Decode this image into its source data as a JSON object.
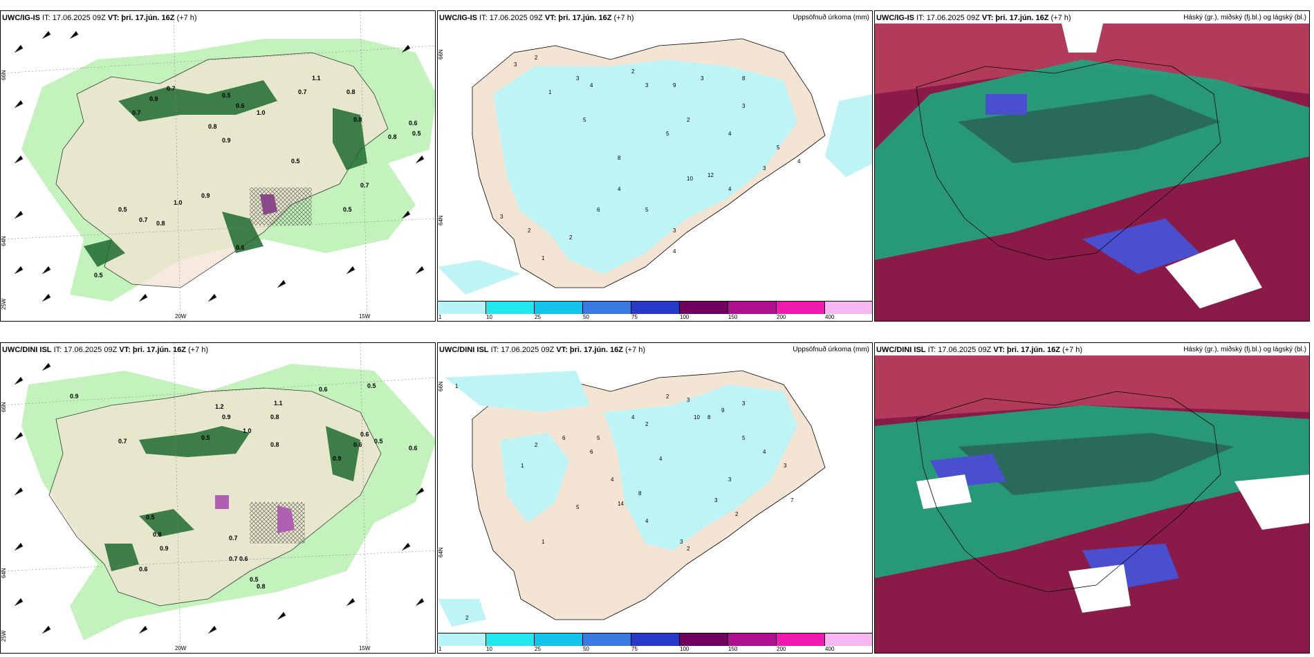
{
  "panels": [
    {
      "model": "UWC/IG-IS",
      "it": "IT: 17.06.2025 09Z",
      "vt_label": "VT:",
      "vt": "þri. 17.jún. 16Z",
      "lead": "(+7 h)",
      "right": ""
    },
    {
      "model": "UWC/IG-IS",
      "it": "IT: 17.06.2025 09Z",
      "vt_label": "VT:",
      "vt": "þri. 17.jún. 16Z",
      "lead": "(+7 h)",
      "right": "Uppsöfnuð úrkoma (mm)"
    },
    {
      "model": "UWC/IG-IS",
      "it": "IT: 17.06.2025 09Z",
      "vt_label": "VT:",
      "vt": "þri. 17.jún. 16Z",
      "lead": "(+7 h)",
      "right": "Háský (gr.), miðský (fj.bl.) og lágský (bl.)"
    },
    {
      "model": "UWC/DINI ISL",
      "it": "IT: 17.06.2025 09Z",
      "vt_label": "VT:",
      "vt": "þri. 17.jún. 16Z",
      "lead": "(+7 h)",
      "right": ""
    },
    {
      "model": "UWC/DINI ISL",
      "it": "IT: 17.06.2025 09Z",
      "vt_label": "VT:",
      "vt": "þri. 17.jún. 16Z",
      "lead": "(+7 h)",
      "right": "Uppsöfnuð úrkoma (mm)"
    },
    {
      "model": "UWC/DINI ISL",
      "it": "IT: 17.06.2025 09Z",
      "vt_label": "VT:",
      "vt": "þri. 17.jún. 16Z",
      "lead": "(+7 h)",
      "right": "Háský (gr.), miðský (fj.bl.) og lágský (bl.)"
    }
  ],
  "axis": {
    "lat66": "66N",
    "lat64": "64N",
    "lon25": "25W",
    "lon20": "20W",
    "lon15": "15W"
  },
  "legend": {
    "labels": [
      "1",
      "10",
      "25",
      "50",
      "75",
      "100",
      "150",
      "200",
      "400"
    ],
    "colors": [
      "#b8f4f6",
      "#22e8ee",
      "#12c4ea",
      "#3a7ae0",
      "#2838c8",
      "#700060",
      "#b01090",
      "#f01ab0",
      "#f7b7f0"
    ]
  },
  "colors": {
    "land": "#f4e4d4",
    "precip_light": "#b9f0b0",
    "precip_dark": "#1f6a2f",
    "cyan": "#bff4f7",
    "cloud_high": "#1ca77c",
    "cloud_mid": "#8a1a48",
    "cloud_low": "#4a4fd0"
  },
  "precip_top": [
    "0.7",
    "0.9",
    "0.7",
    "0.5",
    "0.6",
    "0.8",
    "1.0",
    "0.9",
    "0.8",
    "1.1",
    "0.8",
    "0.7",
    "0.5",
    "0.6",
    "0.5",
    "0.8",
    "0.7",
    "0.5",
    "0.9",
    "1.0",
    "0.7",
    "0.5",
    "0.8",
    "0.6",
    "0.5"
  ],
  "precip_bottom": [
    "0.9",
    "0.6",
    "0.5",
    "1.2",
    "0.9",
    "0.8",
    "1.1",
    "0.6",
    "0.5",
    "0.7",
    "0.6",
    "0.9",
    "0.5",
    "0.8",
    "0.6",
    "1.0",
    "0.7",
    "0.8",
    "0.5",
    "0.7",
    "0.6",
    "0.9",
    "0.5",
    "0.8",
    "0.6"
  ],
  "acc_top": [
    "3",
    "2",
    "1",
    "3",
    "4",
    "5",
    "2",
    "3",
    "9",
    "8",
    "3",
    "5",
    "4",
    "3",
    "2",
    "1",
    "5",
    "4",
    "3",
    "2",
    "4",
    "6",
    "5",
    "3",
    "2",
    "4",
    "10",
    "12",
    "8",
    "4",
    "3"
  ],
  "acc_bottom": [
    "1",
    "2",
    "3",
    "4",
    "5",
    "6",
    "2",
    "3",
    "9",
    "8",
    "10",
    "4",
    "5",
    "3",
    "2",
    "1",
    "4",
    "6",
    "7",
    "3",
    "2",
    "14",
    "8",
    "4",
    "3",
    "2",
    "1",
    "5",
    "4",
    "3",
    "2"
  ]
}
